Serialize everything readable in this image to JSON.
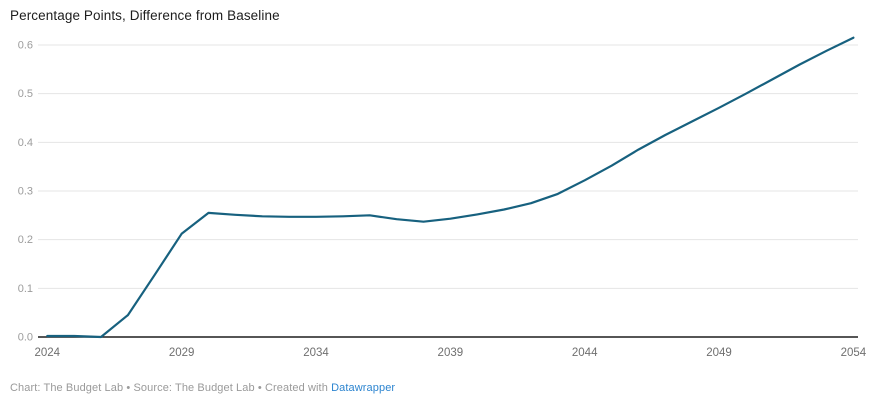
{
  "title": "Percentage Points, Difference from Baseline",
  "footer": {
    "text": "Chart: The Budget Lab • Source: The Budget Lab • Created with ",
    "link_label": "Datawrapper"
  },
  "colors": {
    "line": "#17617f",
    "grid": "#e4e4e4",
    "axis": "#1f1f1f",
    "y_tick_label": "#9c9c9c",
    "x_tick_label": "#6f6f6f",
    "title_text": "#1d1d1d",
    "footer_text": "#9a9a9a",
    "footer_link": "#2d85d0",
    "background": "#ffffff"
  },
  "chart_data": {
    "type": "line",
    "title": "Percentage Points, Difference from Baseline",
    "x": [
      2024,
      2025,
      2026,
      2027,
      2028,
      2029,
      2030,
      2031,
      2032,
      2033,
      2034,
      2035,
      2036,
      2037,
      2038,
      2039,
      2040,
      2041,
      2042,
      2043,
      2044,
      2045,
      2046,
      2047,
      2048,
      2049,
      2050,
      2051,
      2052,
      2053,
      2054
    ],
    "series": [
      {
        "name": "Difference from Baseline (percentage points)",
        "values": [
          0.002,
          0.002,
          0.0,
          0.045,
          0.128,
          0.212,
          0.255,
          0.251,
          0.248,
          0.247,
          0.247,
          0.248,
          0.25,
          0.242,
          0.237,
          0.243,
          0.252,
          0.262,
          0.275,
          0.294,
          0.322,
          0.352,
          0.385,
          0.415,
          0.443,
          0.471,
          0.5,
          0.53,
          0.56,
          0.588,
          0.615
        ]
      }
    ],
    "x_ticks": [
      2024,
      2029,
      2034,
      2039,
      2044,
      2049,
      2054
    ],
    "y_ticks": [
      0.0,
      0.1,
      0.2,
      0.3,
      0.4,
      0.5,
      0.6
    ],
    "xlim": [
      2024,
      2054
    ],
    "ylim": [
      0,
      0.6
    ],
    "xlabel": "",
    "ylabel": "",
    "grid": "horizontal",
    "legend": "none"
  }
}
